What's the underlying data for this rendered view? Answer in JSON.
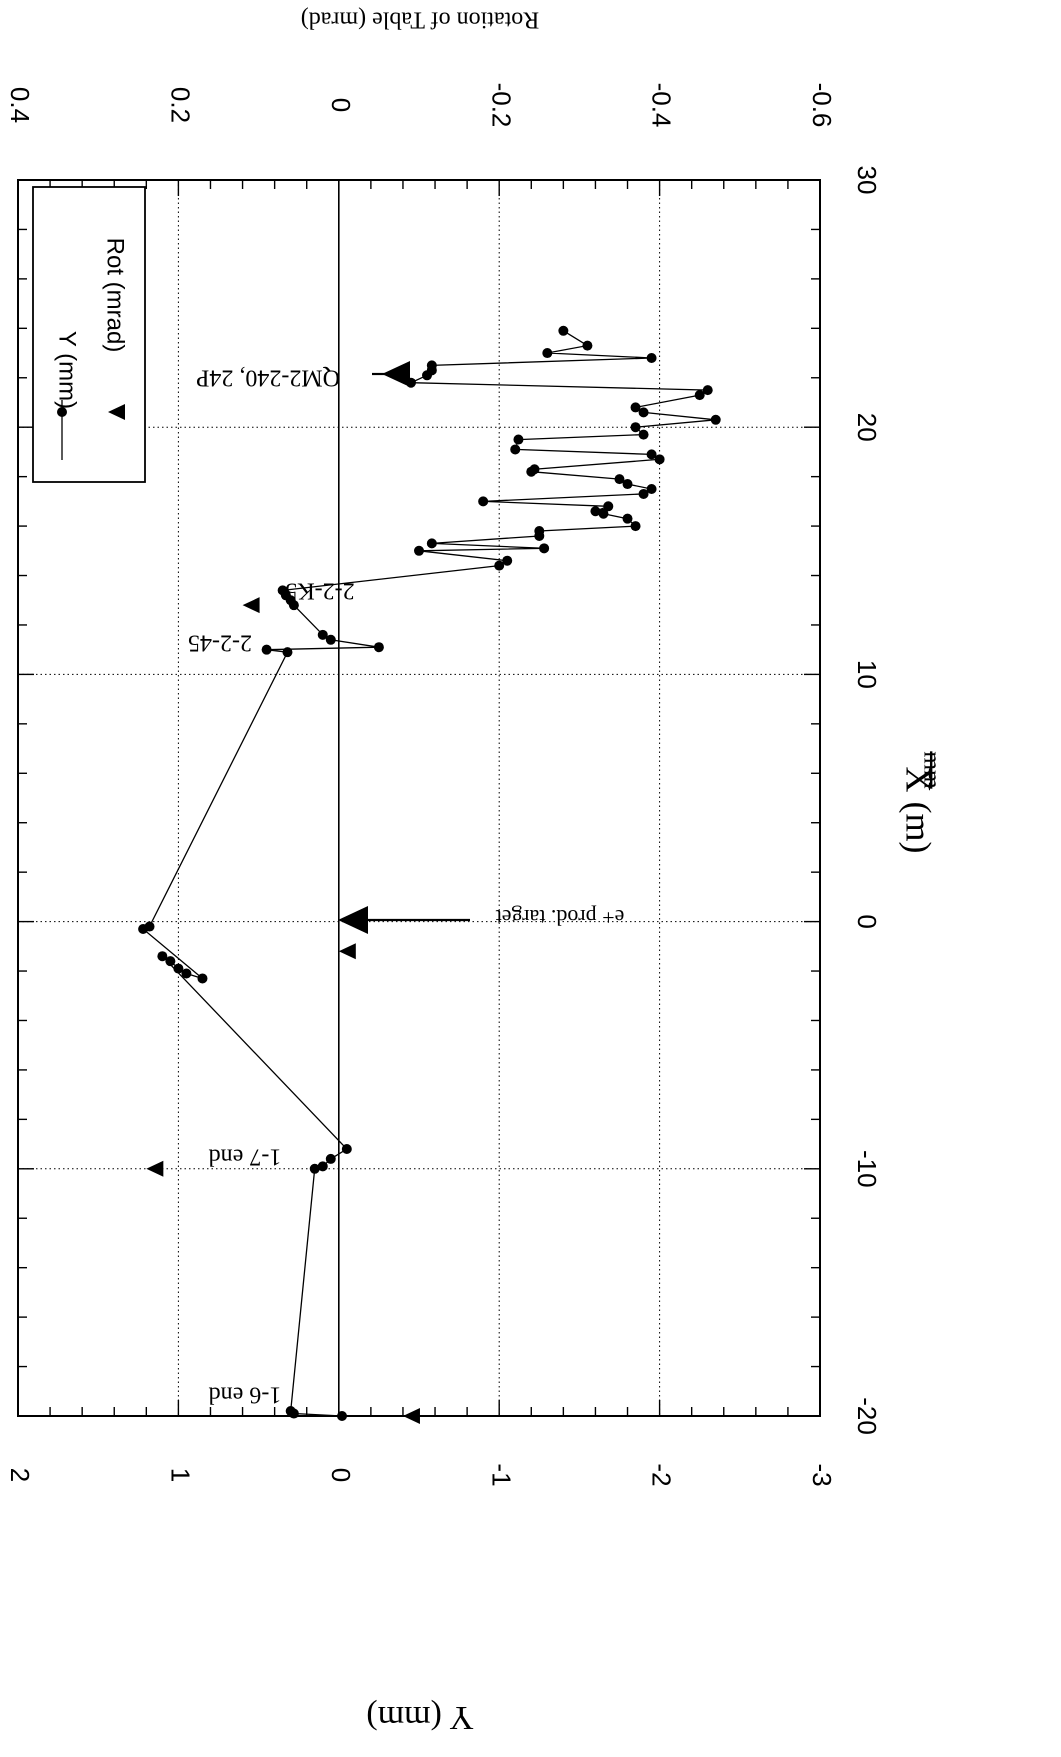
{
  "chart_data": {
    "type": "scatter",
    "orientation": "rotated-90",
    "xlabel": "X (m)",
    "xlabel_strike": "mm",
    "ylabel": "Y (mm)",
    "y2label": "Rotation of Table (mrad)",
    "xlim": [
      -20,
      30
    ],
    "ylim": [
      -3,
      2
    ],
    "y2lim": [
      -0.6,
      0.4
    ],
    "x_ticks": [
      "-20",
      "-10",
      "0",
      "10",
      "20",
      "30"
    ],
    "y_ticks": [
      "-3",
      "-2",
      "-1",
      "0",
      "1",
      "2"
    ],
    "y2_ticks": [
      "-0.6",
      "-0.4",
      "-0.2",
      "0",
      "0.2",
      "0.4"
    ],
    "grid": true,
    "legend_position": "top-left",
    "series": [
      {
        "name": "Y (mm)",
        "style": "line-with-dots",
        "x": [
          -20.0,
          -19.9,
          -19.8,
          -10.0,
          -9.9,
          -9.6,
          -9.2,
          -1.4,
          -1.6,
          -1.9,
          -2.1,
          -2.3,
          -0.3,
          -0.2,
          10.9,
          11.0,
          11.1,
          11.4,
          11.6,
          12.8,
          13.0,
          13.2,
          13.4,
          14.4,
          14.6,
          15.0,
          15.1,
          15.3,
          15.6,
          15.8,
          16.0,
          16.3,
          16.5,
          16.6,
          16.8,
          17.0,
          17.3,
          17.5,
          17.7,
          17.9,
          18.2,
          18.3,
          18.7,
          18.9,
          19.1,
          19.5,
          19.7,
          20.0,
          20.3,
          20.6,
          20.8,
          21.3,
          21.5,
          21.8,
          22.1,
          22.3,
          22.5,
          22.8,
          23.0,
          23.3,
          23.9
        ],
        "y": [
          -0.02,
          0.28,
          0.3,
          0.15,
          0.1,
          0.05,
          -0.05,
          1.1,
          1.05,
          1.0,
          0.95,
          0.85,
          1.22,
          1.18,
          0.32,
          0.45,
          -0.25,
          0.05,
          0.1,
          0.28,
          0.3,
          0.33,
          0.35,
          -1.0,
          -1.05,
          -0.5,
          -1.28,
          -0.58,
          -1.25,
          -1.25,
          -1.85,
          -1.8,
          -1.65,
          -1.6,
          -1.68,
          -0.9,
          -1.9,
          -1.95,
          -1.8,
          -1.75,
          -1.2,
          -1.22,
          -2.0,
          -1.95,
          -1.1,
          -1.12,
          -1.9,
          -1.85,
          -2.35,
          -1.9,
          -1.85,
          -2.25,
          -2.3,
          -0.45,
          -0.55,
          -0.58,
          -0.58,
          -1.95,
          -1.3,
          -1.55,
          -1.4
        ]
      },
      {
        "name": "Rot (mrad)",
        "style": "triangle-markers",
        "axis": "y2",
        "x": [
          -20,
          -10,
          -1.2,
          12.8
        ],
        "y": [
          -0.09,
          0.23,
          -0.01,
          0.11
        ]
      }
    ],
    "annotations": [
      {
        "text": "1-6 end",
        "x": -20
      },
      {
        "text": "1-7 end",
        "x": -10
      },
      {
        "text": "e+ prod. target",
        "x": 0
      },
      {
        "text": "2-2-45",
        "x": 10.8
      },
      {
        "text": "2-2-K5",
        "x": 13
      },
      {
        "text": "QM2-240, 24P",
        "x": 21.8
      }
    ]
  }
}
